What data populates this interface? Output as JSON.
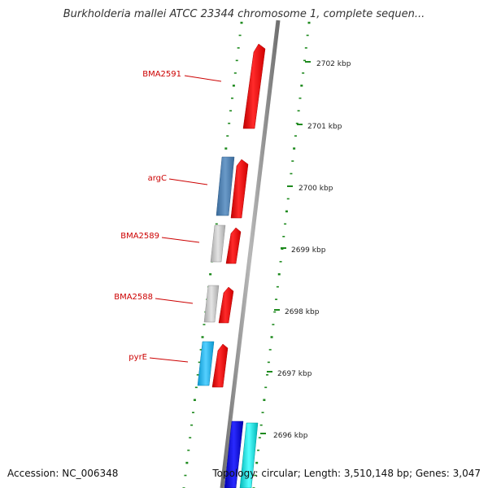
{
  "title": "Burkholderia mallei ATCC 23344 chromosome 1, complete sequen...",
  "accession": "Accession: NC_006348",
  "summary": "Topology: circular; Length: 3,510,148 bp; Genes: 3,047",
  "ticks": [
    "2702 kbp",
    "2701 kbp",
    "2700 kbp",
    "2699 kbp",
    "2698 kbp",
    "2697 kbp",
    "2696 kbp"
  ],
  "gene_labels": [
    "BMA2591",
    "argC",
    "BMA2589",
    "BMA2588",
    "pyrE"
  ],
  "colors": {
    "backbone": "#8a8a8a",
    "tick_mark": "#1e8a1e",
    "label_red": "#cc0000",
    "forward_gene": "#ee1111",
    "steel_gene": "#4a80b0",
    "gray_gene": "#c4c4c4",
    "cyan_gene": "#22b8ee",
    "blue_gene": "#1111dd",
    "aqua_gene": "#11dddd"
  }
}
